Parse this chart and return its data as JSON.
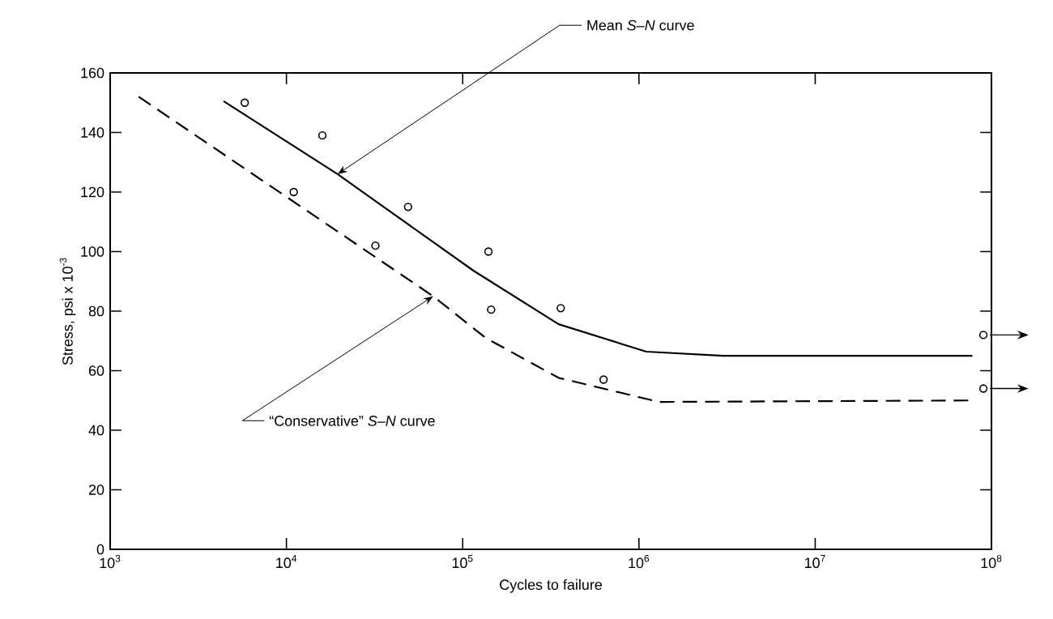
{
  "chart_data": {
    "type": "scatter",
    "xlabel": "Cycles to failure",
    "ylabel": "Stress, psi x 10$^{-3}$",
    "log": "x",
    "xlim": [
      1000,
      100000000
    ],
    "ylim": [
      0,
      160
    ],
    "xticks": [
      {
        "value": 1000,
        "label": "10$^{3}$"
      },
      {
        "value": 10000,
        "label": "10$^{4}$"
      },
      {
        "value": 100000,
        "label": "10$^{5}$"
      },
      {
        "value": 1000000,
        "label": "10$^{6}$"
      },
      {
        "value": 10000000,
        "label": "10$^{7}$"
      },
      {
        "value": 100000000,
        "label": "10$^{8}$"
      }
    ],
    "yticks": [
      0,
      20,
      40,
      60,
      80,
      100,
      120,
      140,
      160
    ],
    "grid": false,
    "series": [
      {
        "color": "#000000",
        "marker": "circle",
        "x": [
          5800,
          16000,
          11000,
          32000,
          49000,
          140000,
          145000,
          360000,
          630000,
          90000000,
          90000000
        ],
        "values": [
          150,
          139,
          120,
          102,
          115,
          100,
          80.5,
          81,
          57,
          72,
          54
        ]
      },
      {
        "type": "line",
        "color": "#000000",
        "line_style": "solid",
        "x": [
          4400,
          19500,
          115000,
          350000,
          1100000,
          3000000,
          78000000
        ],
        "values": [
          150.5,
          126,
          93.6,
          75.6,
          66.4,
          65,
          65
        ]
      },
      {
        "type": "line",
        "color": "#000000",
        "line_style": "dashed",
        "x": [
          1450,
          68000,
          135000,
          350000,
          1300000,
          74000000
        ],
        "values": [
          152,
          85,
          71,
          57.6,
          49.5,
          50
        ]
      }
    ],
    "annotations": [
      {
        "text": "Mean *S–N* curve",
        "x": 19500,
        "y": 126
      },
      {
        "text": "“Conservative” *S–N* curve",
        "x": 68000,
        "y": 85
      }
    ]
  }
}
